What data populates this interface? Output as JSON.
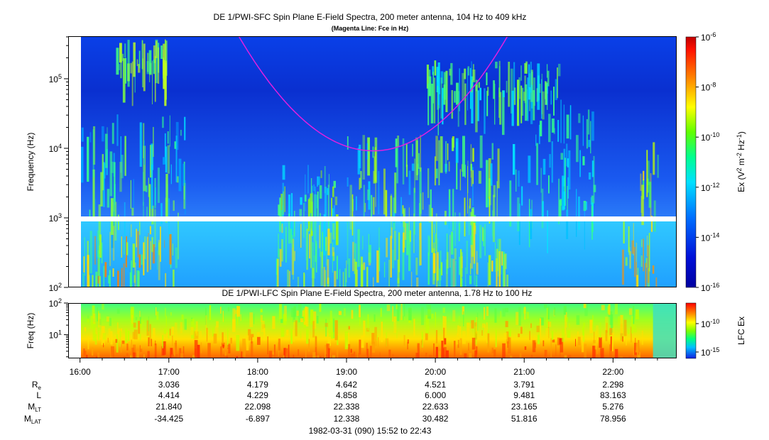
{
  "titles": {
    "top": "DE 1/PWI-SFC  Spin Plane E-Field Spectra, 200 meter antenna, 104 Hz to 409 kHz",
    "top_note": "(Magenta Line: Fce in Hz)",
    "bottom": "DE 1/PWI-LFC  Spin Plane E-Field Spectra, 200 meter antenna, 1.78 Hz to 100 Hz",
    "footer": "1982-03-31 (090) 15:52 to 22:43"
  },
  "chart_data": [
    {
      "type": "heatmap",
      "name": "SFC",
      "ylabel": "Frequency (Hz)",
      "yscale": "log",
      "ylim": [
        100,
        409000
      ],
      "xlim_hours": [
        15.8667,
        22.7167
      ],
      "yticks": [
        {
          "value": 100,
          "base": "10",
          "exp": "2"
        },
        {
          "value": 1000,
          "base": "10",
          "exp": "3"
        },
        {
          "value": 10000,
          "base": "10",
          "exp": "4"
        },
        {
          "value": 100000,
          "base": "10",
          "exp": "5"
        }
      ],
      "gap_hz": [
        870,
        1030
      ],
      "fce_line": {
        "color": "#e020e0",
        "min_time_hour": 19.3,
        "min_freq_hz": 9200
      },
      "colorbar": {
        "label": "Ex (V² m⁻² Hz⁻¹)",
        "scale": "log",
        "range": [
          1e-16,
          1e-06
        ],
        "ticks": [
          {
            "value": 1e-06,
            "base": "10",
            "exp": "-6"
          },
          {
            "value": 1e-08,
            "base": "10",
            "exp": "-8"
          },
          {
            "value": 1e-10,
            "base": "10",
            "exp": "-10"
          },
          {
            "value": 1e-12,
            "base": "10",
            "exp": "-12"
          },
          {
            "value": 1e-14,
            "base": "10",
            "exp": "-14"
          },
          {
            "value": 1e-16,
            "base": "10",
            "exp": "-16"
          }
        ]
      }
    },
    {
      "type": "heatmap",
      "name": "LFC",
      "ylabel": "Freq (Hz)",
      "yscale": "log",
      "ylim": [
        1.78,
        100
      ],
      "yticks": [
        {
          "value": 10,
          "base": "10",
          "exp": "1"
        },
        {
          "value": 100,
          "base": "10",
          "exp": "2"
        }
      ],
      "colorbar": {
        "label": "LFC Ex",
        "scale": "log",
        "ticks": [
          {
            "value": 1e-10,
            "base": "10",
            "exp": "-10"
          },
          {
            "value": 1e-15,
            "base": "10",
            "exp": "-15"
          }
        ]
      }
    }
  ],
  "time_axis": {
    "ticks": [
      {
        "hour": 16,
        "label": "16:00"
      },
      {
        "hour": 17,
        "label": "17:00"
      },
      {
        "hour": 18,
        "label": "18:00"
      },
      {
        "hour": 19,
        "label": "19:00"
      },
      {
        "hour": 20,
        "label": "20:00"
      },
      {
        "hour": 21,
        "label": "21:00"
      },
      {
        "hour": 22,
        "label": "22:00"
      }
    ]
  },
  "ephemeris": [
    {
      "label": "R",
      "sub": "e",
      "values": [
        "3.036",
        "4.179",
        "4.642",
        "4.521",
        "3.791",
        "2.298"
      ]
    },
    {
      "label": "L",
      "sub": "",
      "values": [
        "4.414",
        "4.229",
        "4.858",
        "6.000",
        "9.481",
        "83.163"
      ]
    },
    {
      "label": "M",
      "sub": "LT",
      "values": [
        "21.840",
        "22.098",
        "22.338",
        "22.633",
        "23.165",
        "5.276"
      ]
    },
    {
      "label": "M",
      "sub": "LAT",
      "values": [
        "-34.425",
        "-6.897",
        "12.338",
        "30.482",
        "51.816",
        "78.956"
      ]
    }
  ]
}
